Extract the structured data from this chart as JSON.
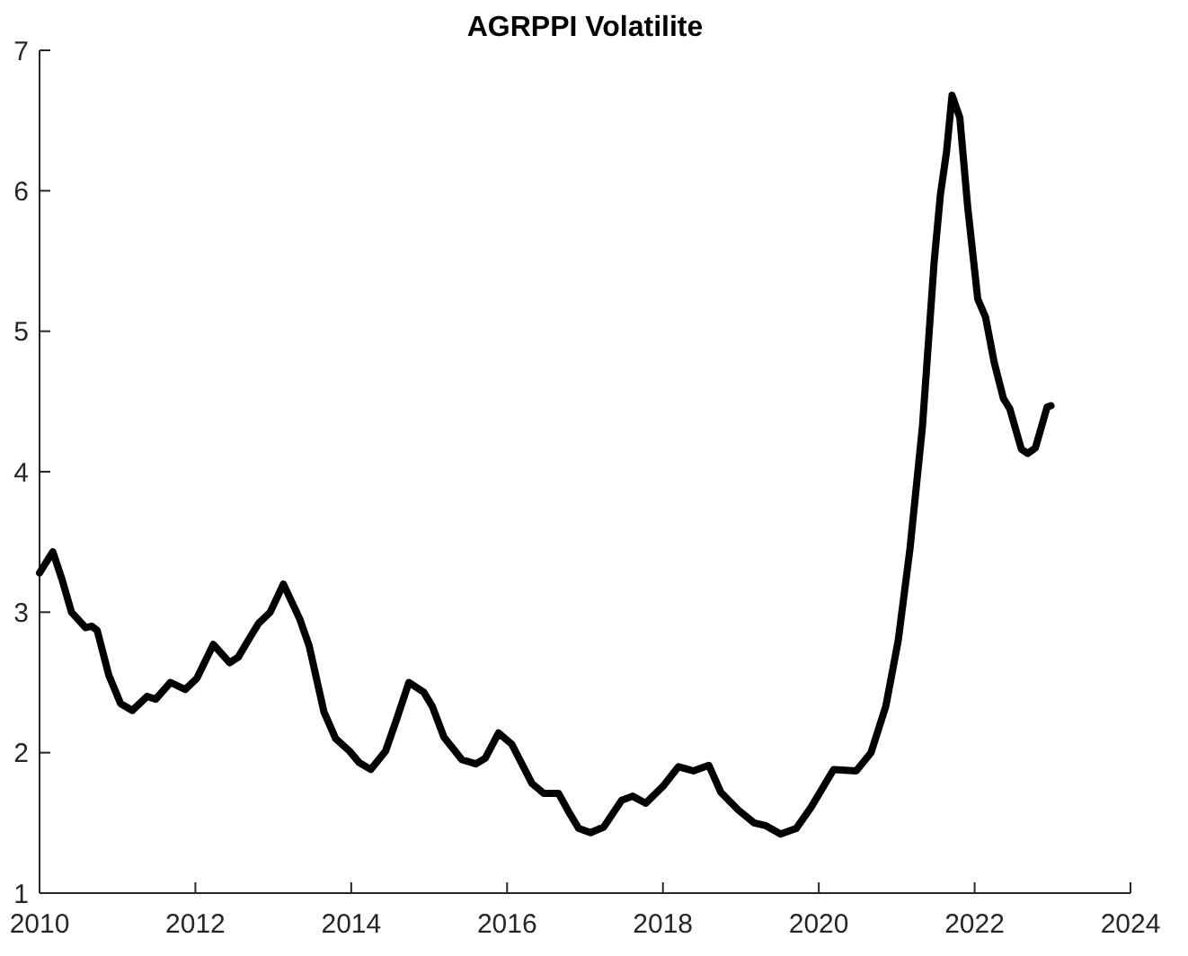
{
  "chart_data": {
    "type": "line",
    "title": "AGRPPI Volatilite",
    "x": [
      2010.0,
      2010.17,
      2010.29,
      2010.41,
      2010.59,
      2010.67,
      2010.74,
      2010.89,
      2011.04,
      2011.19,
      2011.38,
      2011.49,
      2011.68,
      2011.87,
      2012.02,
      2012.23,
      2012.44,
      2012.55,
      2012.7,
      2012.81,
      2012.96,
      2013.13,
      2013.34,
      2013.46,
      2013.65,
      2013.8,
      2013.98,
      2014.1,
      2014.25,
      2014.44,
      2014.59,
      2014.74,
      2014.93,
      2015.04,
      2015.19,
      2015.42,
      2015.6,
      2015.72,
      2015.89,
      2016.06,
      2016.32,
      2016.47,
      2016.66,
      2016.81,
      2016.92,
      2017.07,
      2017.24,
      2017.47,
      2017.61,
      2017.78,
      2018.0,
      2018.2,
      2018.39,
      2018.59,
      2018.74,
      2018.97,
      2019.17,
      2019.32,
      2019.51,
      2019.71,
      2019.9,
      2020.19,
      2020.48,
      2020.67,
      2020.86,
      2021.02,
      2021.17,
      2021.33,
      2021.48,
      2021.56,
      2021.64,
      2021.71,
      2021.81,
      2021.91,
      2022.04,
      2022.14,
      2022.25,
      2022.37,
      2022.45,
      2022.6,
      2022.68,
      2022.78,
      2022.93,
      2022.98
    ],
    "series": [
      {
        "color": "#000000",
        "values": [
          3.28,
          3.43,
          3.23,
          3.0,
          2.89,
          2.9,
          2.87,
          2.55,
          2.35,
          2.3,
          2.4,
          2.38,
          2.5,
          2.45,
          2.53,
          2.77,
          2.64,
          2.68,
          2.82,
          2.92,
          3.0,
          3.2,
          2.95,
          2.76,
          2.29,
          2.1,
          2.01,
          1.93,
          1.88,
          2.01,
          2.25,
          2.5,
          2.43,
          2.33,
          2.11,
          1.95,
          1.92,
          1.96,
          2.14,
          2.06,
          1.78,
          1.71,
          1.71,
          1.56,
          1.46,
          1.43,
          1.47,
          1.66,
          1.69,
          1.64,
          1.76,
          1.9,
          1.87,
          1.91,
          1.72,
          1.59,
          1.5,
          1.48,
          1.42,
          1.46,
          1.61,
          1.88,
          1.87,
          2.0,
          2.33,
          2.8,
          3.45,
          4.32,
          5.49,
          5.97,
          6.28,
          6.68,
          6.52,
          5.89,
          5.23,
          5.1,
          4.78,
          4.52,
          4.45,
          4.16,
          4.13,
          4.17,
          4.46,
          4.47
        ]
      }
    ],
    "xlim": [
      2010,
      2024
    ],
    "xticks": [
      2010,
      2012,
      2014,
      2016,
      2018,
      2020,
      2022,
      2024
    ],
    "ylim": [
      1,
      7
    ],
    "yticks": [
      1,
      2,
      3,
      4,
      5,
      6,
      7
    ],
    "line_style": "solid",
    "marker": "none"
  }
}
